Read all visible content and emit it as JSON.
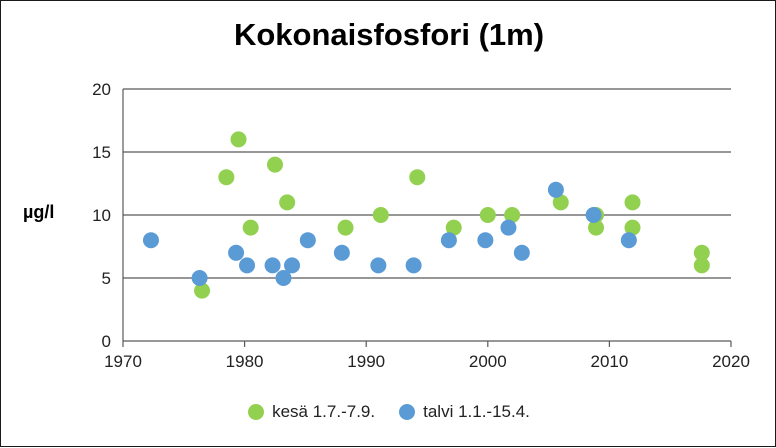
{
  "chart_data": {
    "type": "scatter",
    "title": "Kokonaisfosfori (1m)",
    "xlabel": "",
    "ylabel": "µg/l",
    "xlim": [
      1970,
      2020
    ],
    "ylim": [
      0,
      20
    ],
    "xticks": [
      1970,
      1980,
      1990,
      2000,
      2010,
      2020
    ],
    "yticks": [
      0,
      5,
      10,
      15,
      20
    ],
    "grid": "horizontal",
    "legend_position": "bottom",
    "series": [
      {
        "name": "kesä 1.7.-7.9.",
        "color": "#92d050",
        "points": [
          [
            1976.5,
            4
          ],
          [
            1978.5,
            13
          ],
          [
            1979.5,
            16
          ],
          [
            1980.5,
            9
          ],
          [
            1982.5,
            14
          ],
          [
            1983.5,
            11
          ],
          [
            1988.3,
            9
          ],
          [
            1991.2,
            10
          ],
          [
            1994.2,
            13
          ],
          [
            1997.2,
            9
          ],
          [
            2000.0,
            10
          ],
          [
            2002.0,
            10
          ],
          [
            2006.0,
            11
          ],
          [
            2008.9,
            10
          ],
          [
            2008.9,
            9
          ],
          [
            2011.9,
            11
          ],
          [
            2011.9,
            9
          ],
          [
            2017.6,
            7
          ],
          [
            2017.6,
            6
          ]
        ]
      },
      {
        "name": "talvi 1.1.-15.4.",
        "color": "#5b9bd5",
        "points": [
          [
            1972.3,
            8
          ],
          [
            1976.3,
            5
          ],
          [
            1979.3,
            7
          ],
          [
            1980.2,
            6
          ],
          [
            1982.3,
            6
          ],
          [
            1983.2,
            5
          ],
          [
            1983.9,
            6
          ],
          [
            1985.2,
            8
          ],
          [
            1988.0,
            7
          ],
          [
            1991.0,
            6
          ],
          [
            1993.9,
            6
          ],
          [
            1996.8,
            8
          ],
          [
            1999.8,
            8
          ],
          [
            2001.7,
            9
          ],
          [
            2002.8,
            7
          ],
          [
            2005.6,
            12
          ],
          [
            2008.7,
            10
          ],
          [
            2011.6,
            8
          ]
        ]
      }
    ]
  }
}
